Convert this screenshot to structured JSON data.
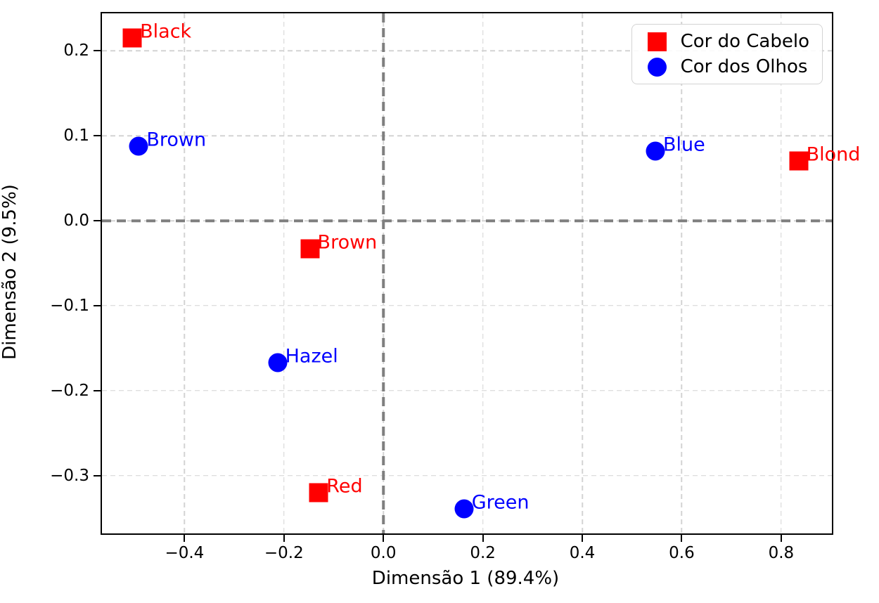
{
  "figure": {
    "background": "#ffffff",
    "plot_border_color": "#000000",
    "grid_color": "#d3d3d3",
    "zero_line_color": "#7f7f7f"
  },
  "axes": {
    "xlabel": "Dimensão 1 (89.4%)",
    "ylabel": "Dimensão 2 (9.5%)",
    "xticks": [
      {
        "value": -0.4,
        "label": "−0.4"
      },
      {
        "value": -0.2,
        "label": "−0.2"
      },
      {
        "value": 0.0,
        "label": "0.0"
      },
      {
        "value": 0.2,
        "label": "0.2"
      },
      {
        "value": 0.4,
        "label": "0.4"
      },
      {
        "value": 0.6,
        "label": "0.6"
      },
      {
        "value": 0.8,
        "label": "0.8"
      }
    ],
    "yticks": [
      {
        "value": 0.2,
        "label": "0.2"
      },
      {
        "value": 0.1,
        "label": "0.1"
      },
      {
        "value": 0.0,
        "label": "0.0"
      },
      {
        "value": -0.1,
        "label": "−0.1"
      },
      {
        "value": -0.2,
        "label": "−0.2"
      },
      {
        "value": -0.3,
        "label": "−0.3"
      }
    ]
  },
  "legend": {
    "items": [
      {
        "label": "Cor do Cabelo",
        "marker": "square",
        "color": "#ff0000"
      },
      {
        "label": "Cor dos Olhos",
        "marker": "circle",
        "color": "#0000ff"
      }
    ]
  },
  "chart_data": {
    "type": "scatter",
    "title": "",
    "xlabel": "Dimensão 1 (89.4%)",
    "ylabel": "Dimensão 2 (9.5%)",
    "xlim": [
      -0.566,
      0.902
    ],
    "ylim": [
      -0.368,
      0.244
    ],
    "grid": true,
    "zero_lines": true,
    "legend_position": "upper right",
    "series": [
      {
        "name": "Cor do Cabelo",
        "marker": "square",
        "color": "#ff0000",
        "points": [
          {
            "label": "Black",
            "x": -0.505,
            "y": 0.215
          },
          {
            "label": "Brown",
            "x": -0.148,
            "y": -0.033
          },
          {
            "label": "Red",
            "x": -0.13,
            "y": -0.32
          },
          {
            "label": "Blond",
            "x": 0.835,
            "y": 0.07
          }
        ]
      },
      {
        "name": "Cor dos Olhos",
        "marker": "circle",
        "color": "#0000ff",
        "points": [
          {
            "label": "Brown",
            "x": -0.492,
            "y": 0.088
          },
          {
            "label": "Blue",
            "x": 0.547,
            "y": 0.082
          },
          {
            "label": "Hazel",
            "x": -0.213,
            "y": -0.167
          },
          {
            "label": "Green",
            "x": 0.162,
            "y": -0.339
          }
        ]
      }
    ]
  }
}
